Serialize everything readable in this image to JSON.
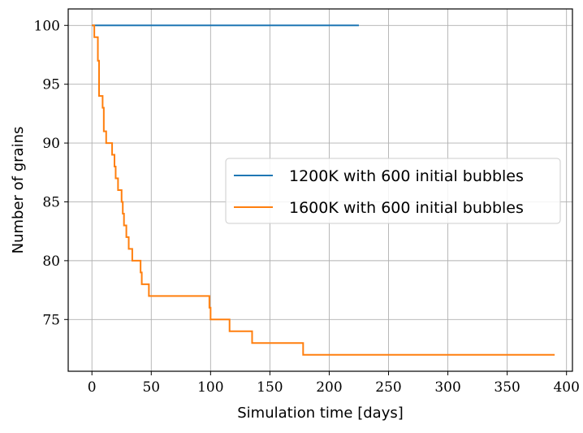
{
  "chart_data": {
    "type": "line",
    "title": "",
    "xlabel": "Simulation time [days]",
    "ylabel": "Number of grains",
    "xlim": [
      -20,
      405
    ],
    "ylim": [
      70.6,
      101.4
    ],
    "xticks": [
      0,
      50,
      100,
      150,
      200,
      250,
      300,
      350,
      400
    ],
    "yticks": [
      75,
      80,
      85,
      90,
      95,
      100
    ],
    "grid": true,
    "legend_position": "center-right",
    "series": [
      {
        "name": "1200K with 600 initial bubbles",
        "color": "#1f77b4",
        "step": true,
        "x": [
          0,
          225
        ],
        "y": [
          100,
          100
        ]
      },
      {
        "name": "1600K with 600 initial bubbles",
        "color": "#ff7f0e",
        "step": true,
        "x": [
          0,
          2,
          3,
          5,
          6,
          9,
          10,
          12,
          17,
          19,
          20,
          22,
          25,
          26,
          27,
          29,
          31,
          34,
          38,
          41,
          42,
          44,
          48,
          99,
          100,
          101,
          116,
          135,
          178,
          390
        ],
        "y": [
          100,
          99,
          99,
          97,
          94,
          93,
          91,
          90,
          89,
          88,
          87,
          86,
          85,
          84,
          83,
          82,
          81,
          80,
          80,
          79,
          78,
          78,
          77,
          76,
          75,
          75,
          74,
          73,
          72,
          72
        ]
      }
    ]
  }
}
